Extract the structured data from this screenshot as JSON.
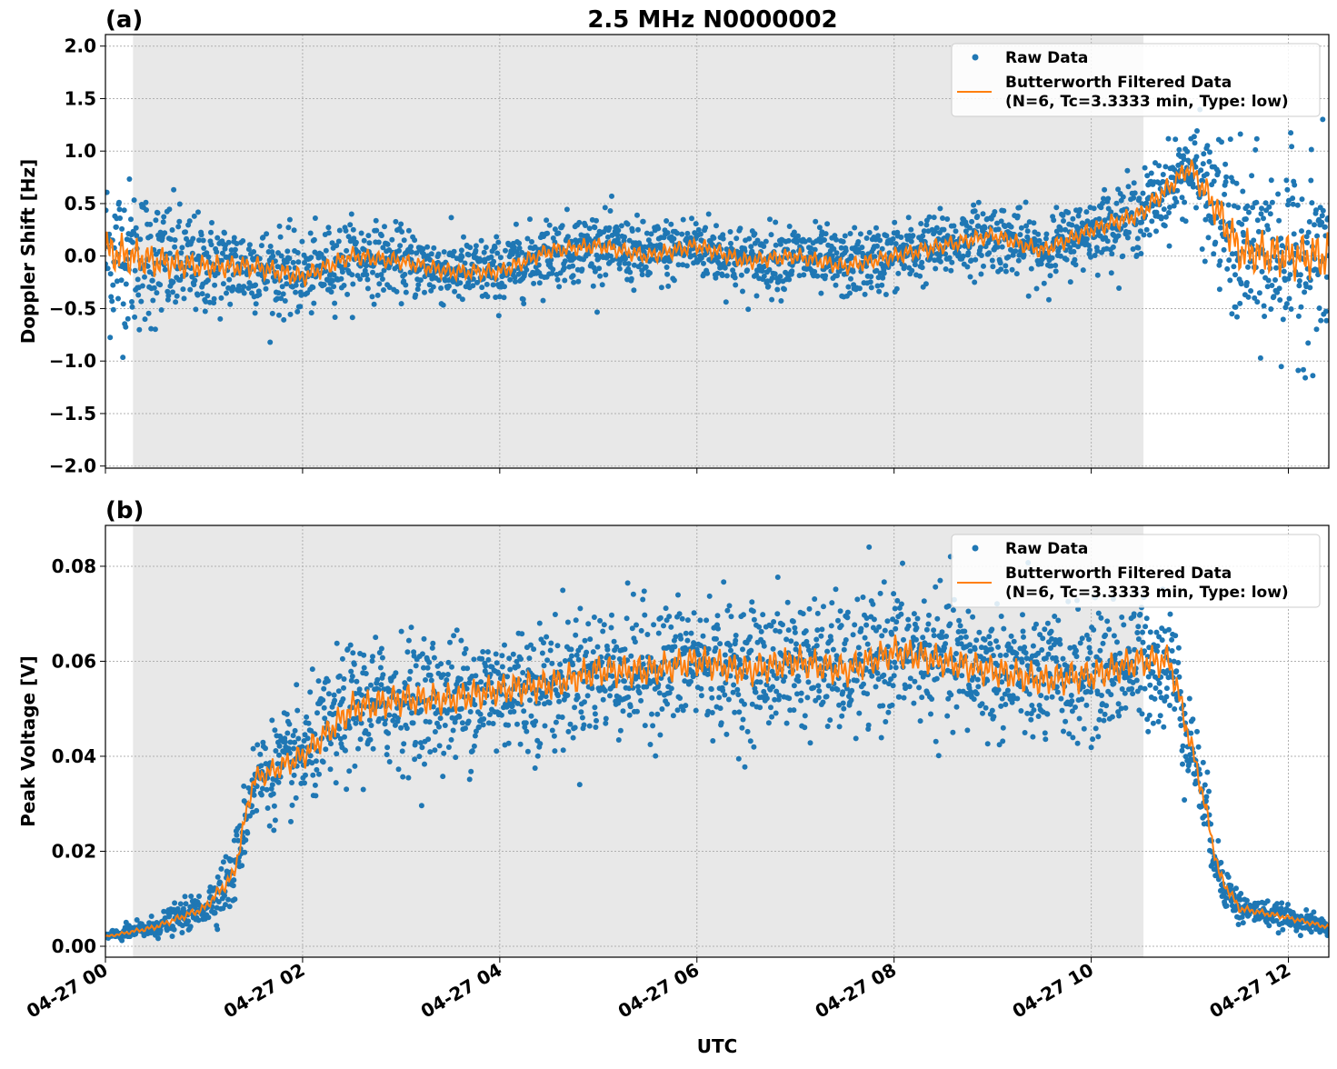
{
  "title": "2.5 MHz N0000002",
  "chart_data": [
    {
      "type": "scatter",
      "panel_label": "(a)",
      "ylabel": "Doppler Shift [Hz]",
      "xlabel": "",
      "ylim": [
        -2.02,
        2.11
      ],
      "xlim_hours": [
        0,
        12.41
      ],
      "yticks": [
        "−2.0",
        "−1.5",
        "−1.0",
        "−0.5",
        "0.0",
        "0.5",
        "1.0",
        "1.5",
        "2.0"
      ],
      "ytick_values": [
        -2.0,
        -1.5,
        -1.0,
        -0.5,
        0.0,
        0.5,
        1.0,
        1.5,
        2.0
      ],
      "grid": true,
      "shaded_span_hours": [
        0.28,
        10.53
      ],
      "legend": {
        "placement": "top-right",
        "entries": [
          "Raw Data",
          "Butterworth Filtered Data",
          "(N=6, Tc=3.3333 min, Type: low)"
        ]
      },
      "series": [
        {
          "name": "Raw Data",
          "kind": "scatter",
          "color": "#1f77b4",
          "spread": [
            [
              0,
              0.9
            ],
            [
              1,
              0.5
            ],
            [
              1.5,
              0.45
            ],
            [
              3,
              0.35
            ],
            [
              10,
              0.35
            ],
            [
              11,
              0.45
            ],
            [
              11.4,
              0.9
            ],
            [
              12.41,
              1.0
            ]
          ]
        },
        {
          "name": "Butterworth Filtered Data",
          "kind": "line",
          "color": "#ff7f0e",
          "x": [
            0,
            0.5,
            1,
            1.5,
            2,
            2.5,
            3,
            3.5,
            4,
            4.5,
            5,
            5.5,
            6,
            6.5,
            7,
            7.5,
            8,
            8.5,
            9,
            9.5,
            10,
            10.5,
            11,
            11.3,
            11.5,
            12,
            12.41
          ],
          "y": [
            0.05,
            -0.05,
            -0.1,
            -0.1,
            -0.2,
            0.0,
            -0.05,
            -0.15,
            -0.15,
            0.05,
            0.1,
            0.0,
            0.1,
            -0.05,
            0.0,
            -0.1,
            0.0,
            0.1,
            0.2,
            0.05,
            0.25,
            0.4,
            0.85,
            0.4,
            0.05,
            0.0,
            0.0
          ]
        }
      ]
    },
    {
      "type": "scatter",
      "panel_label": "(b)",
      "ylabel": "Peak Voltage [V]",
      "xlabel": "UTC",
      "ylim": [
        -0.0023,
        0.0886
      ],
      "xlim_hours": [
        0,
        12.41
      ],
      "yticks": [
        "0.00",
        "0.02",
        "0.04",
        "0.06",
        "0.08"
      ],
      "ytick_values": [
        0,
        0.02,
        0.04,
        0.06,
        0.08
      ],
      "xticks": [
        "04-27 00",
        "04-27 02",
        "04-27 04",
        "04-27 06",
        "04-27 08",
        "04-27 10",
        "04-27 12"
      ],
      "xtick_hours": [
        0,
        2,
        4,
        6,
        8,
        10,
        12
      ],
      "grid": true,
      "shaded_span_hours": [
        0.28,
        10.53
      ],
      "legend": {
        "placement": "top-right",
        "entries": [
          "Raw Data",
          "Butterworth Filtered Data",
          "(N=6, Tc=3.3333 min, Type: low)"
        ]
      },
      "series": [
        {
          "name": "Raw Data",
          "kind": "scatter",
          "color": "#1f77b4",
          "spread": [
            [
              0,
              0.001
            ],
            [
              1,
              0.004
            ],
            [
              1.5,
              0.01
            ],
            [
              2.5,
              0.015
            ],
            [
              10.8,
              0.015
            ],
            [
              11.3,
              0.006
            ],
            [
              11.6,
              0.003
            ],
            [
              12.41,
              0.002
            ]
          ]
        },
        {
          "name": "Butterworth Filtered Data",
          "kind": "line",
          "color": "#ff7f0e",
          "x": [
            0,
            0.5,
            1,
            1.3,
            1.5,
            2,
            2.5,
            3,
            3.5,
            4,
            4.5,
            5,
            5.5,
            6,
            6.5,
            7,
            7.5,
            8,
            8.5,
            9,
            9.5,
            10,
            10.5,
            10.8,
            11.1,
            11.3,
            11.5,
            12,
            12.41
          ],
          "y": [
            0.002,
            0.004,
            0.008,
            0.015,
            0.035,
            0.04,
            0.05,
            0.052,
            0.052,
            0.054,
            0.055,
            0.058,
            0.058,
            0.06,
            0.058,
            0.06,
            0.058,
            0.062,
            0.06,
            0.058,
            0.056,
            0.057,
            0.06,
            0.06,
            0.035,
            0.015,
            0.008,
            0.006,
            0.004
          ]
        }
      ]
    }
  ]
}
